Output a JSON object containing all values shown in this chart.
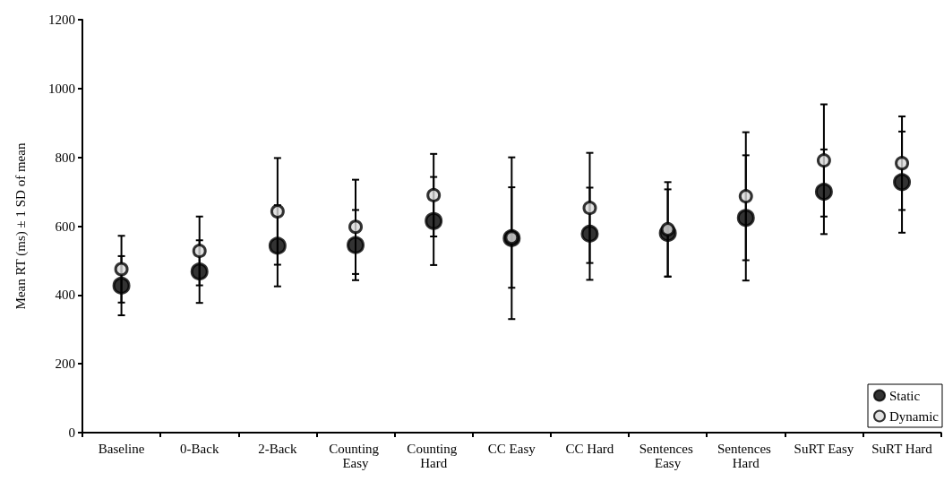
{
  "chart_data": {
    "type": "scatter",
    "ylabel": "Mean RT (ms) ± 1 SD of mean",
    "categories": [
      "Baseline",
      "0-Back",
      "2-Back",
      "Counting Easy",
      "Counting Hard",
      "CC Easy",
      "CC Hard",
      "Sentences Easy",
      "Sentences Hard",
      "SuRT Easy",
      "SuRT Hard"
    ],
    "series": [
      {
        "name": "Static",
        "color": "#000000",
        "values": [
          427,
          468,
          543,
          545,
          615,
          565,
          578,
          580,
          624,
          700,
          728
        ],
        "errors": [
          86,
          91,
          118,
          102,
          128,
          235,
          134,
          127,
          182,
          123,
          147
        ]
      },
      {
        "name": "Dynamic",
        "color": "#d9d9d9",
        "values": [
          475,
          528,
          643,
          598,
          690,
          567,
          653,
          591,
          687,
          791,
          783
        ],
        "errors": [
          97,
          100,
          155,
          137,
          120,
          146,
          160,
          137,
          186,
          163,
          136
        ]
      }
    ],
    "ylim": [
      0,
      1200
    ],
    "yticks": [
      0,
      200,
      400,
      600,
      800,
      1000,
      1200
    ],
    "grid": false,
    "legend": "bottom right",
    "marker": "circle"
  }
}
